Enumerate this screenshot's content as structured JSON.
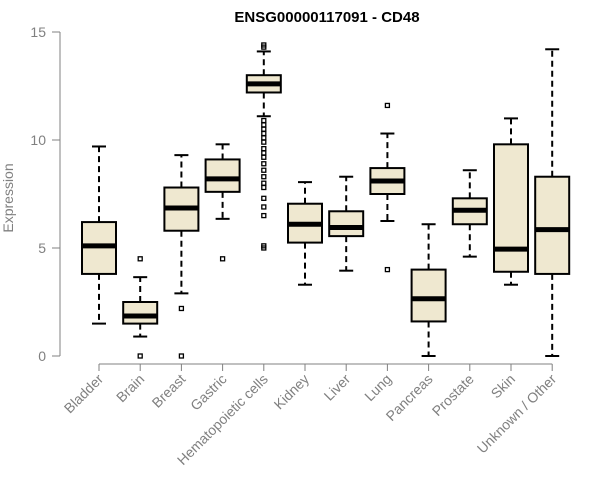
{
  "chart_data": {
    "type": "boxplot",
    "title": "ENSG00000117091 - CD48",
    "ylabel": "Expression",
    "ylim": [
      0,
      15
    ],
    "yticks": [
      0,
      5,
      10,
      15
    ],
    "colors": {
      "box_fill": "#efe8d0",
      "box_stroke": "#000000",
      "axis": "#808080"
    },
    "categories": [
      "Bladder",
      "Brain",
      "Breast",
      "Gastric",
      "Hematopoietic cells",
      "Kidney",
      "Liver",
      "Lung",
      "Pancreas",
      "Prostate",
      "Skin",
      "Unknown / Other"
    ],
    "boxes": [
      {
        "whisker_low": 1.5,
        "q1": 3.8,
        "median": 5.1,
        "q3": 6.2,
        "whisker_high": 9.7,
        "outliers": []
      },
      {
        "whisker_low": 0.9,
        "q1": 1.5,
        "median": 1.85,
        "q3": 2.5,
        "whisker_high": 3.65,
        "outliers": [
          0.0,
          4.5
        ]
      },
      {
        "whisker_low": 2.9,
        "q1": 5.8,
        "median": 6.85,
        "q3": 7.8,
        "whisker_high": 9.3,
        "outliers": [
          0.0,
          2.2
        ]
      },
      {
        "whisker_low": 6.35,
        "q1": 7.6,
        "median": 8.2,
        "q3": 9.1,
        "whisker_high": 9.8,
        "outliers": [
          4.5
        ]
      },
      {
        "whisker_low": 11.1,
        "q1": 12.2,
        "median": 12.6,
        "q3": 13.0,
        "whisker_high": 14.1,
        "outliers": [
          5.0,
          5.1,
          6.5,
          6.9,
          7.3,
          7.8,
          8.0,
          8.3,
          8.6,
          8.9,
          9.2,
          9.4,
          9.6,
          9.9,
          10.1,
          10.3,
          10.5,
          10.7,
          10.9,
          14.3,
          14.4
        ]
      },
      {
        "whisker_low": 3.3,
        "q1": 5.25,
        "median": 6.1,
        "q3": 7.05,
        "whisker_high": 8.05,
        "outliers": []
      },
      {
        "whisker_low": 3.95,
        "q1": 5.55,
        "median": 5.95,
        "q3": 6.7,
        "whisker_high": 8.3,
        "outliers": []
      },
      {
        "whisker_low": 6.25,
        "q1": 7.5,
        "median": 8.1,
        "q3": 8.7,
        "whisker_high": 10.3,
        "outliers": [
          4.0,
          11.6
        ]
      },
      {
        "whisker_low": 0.0,
        "q1": 1.6,
        "median": 2.65,
        "q3": 4.0,
        "whisker_high": 6.1,
        "outliers": []
      },
      {
        "whisker_low": 4.6,
        "q1": 6.1,
        "median": 6.75,
        "q3": 7.3,
        "whisker_high": 8.6,
        "outliers": []
      },
      {
        "whisker_low": 3.3,
        "q1": 3.9,
        "median": 4.95,
        "q3": 9.8,
        "whisker_high": 11.0,
        "outliers": []
      },
      {
        "whisker_low": 0.0,
        "q1": 3.8,
        "median": 5.85,
        "q3": 8.3,
        "whisker_high": 14.2,
        "outliers": []
      }
    ]
  }
}
